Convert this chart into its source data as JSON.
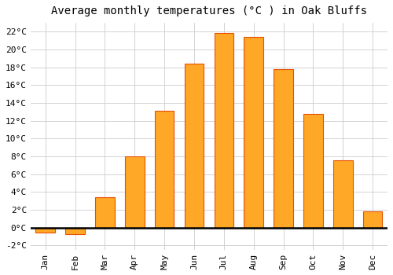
{
  "title": "Average monthly temperatures (°C ) in Oak Bluffs",
  "months": [
    "Jan",
    "Feb",
    "Mar",
    "Apr",
    "May",
    "Jun",
    "Jul",
    "Aug",
    "Sep",
    "Oct",
    "Nov",
    "Dec"
  ],
  "values": [
    -0.6,
    -0.7,
    3.4,
    8.0,
    13.1,
    18.4,
    21.9,
    21.4,
    17.8,
    12.8,
    7.6,
    1.8
  ],
  "bar_color": "#FFA726",
  "bar_edge_color": "#E65100",
  "background_color": "#FFFFFF",
  "grid_color": "#CCCCCC",
  "ylim": [
    -2.5,
    23
  ],
  "yticks": [
    -2,
    0,
    2,
    4,
    6,
    8,
    10,
    12,
    14,
    16,
    18,
    20,
    22
  ],
  "title_fontsize": 10,
  "tick_fontsize": 8,
  "font_family": "monospace"
}
